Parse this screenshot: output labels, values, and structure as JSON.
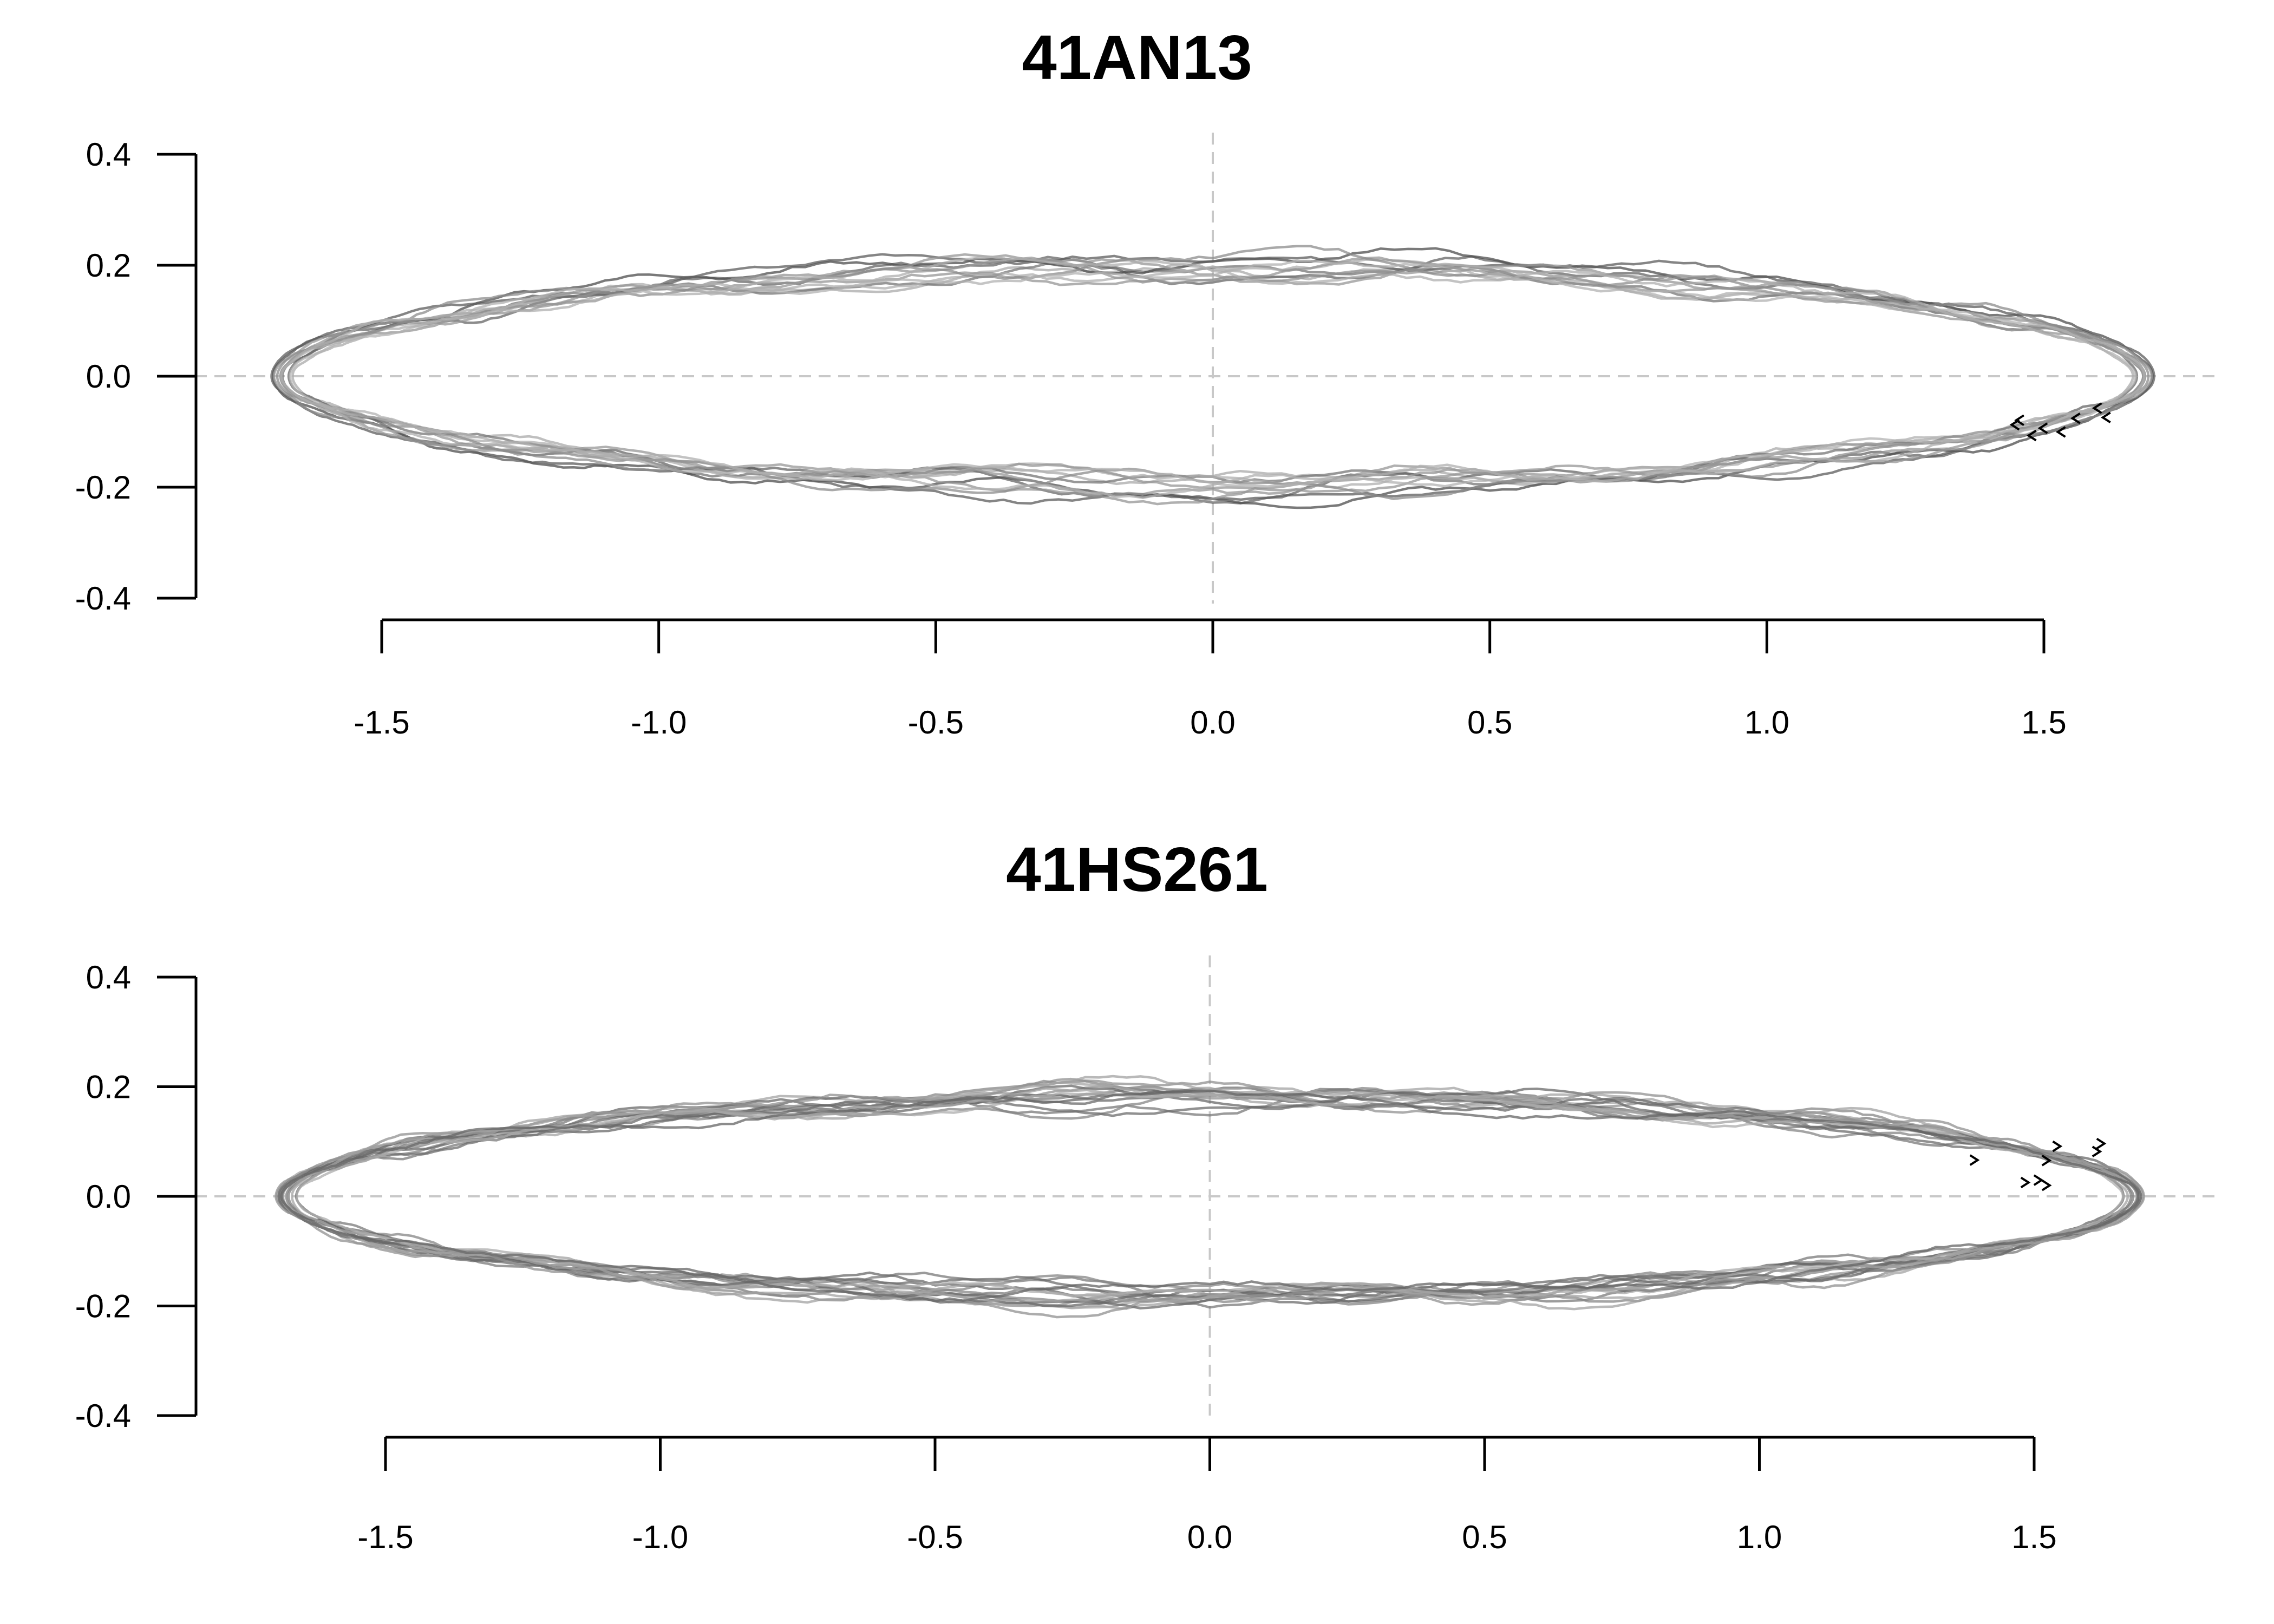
{
  "chart_data": [
    {
      "type": "line",
      "title": "41AN13",
      "xlabel": "",
      "ylabel": "",
      "xlim": [
        -1.85,
        1.83
      ],
      "ylim": [
        -0.4,
        0.4
      ],
      "x_ticks": [
        "-1.5",
        "-1.0",
        "-0.5",
        "0.0",
        "0.5",
        "1.0",
        "1.5"
      ],
      "y_ticks": [
        "0.4",
        "0.2",
        "0.0",
        "-0.2",
        "-0.4"
      ],
      "reference_lines": {
        "x": 0,
        "y": 0,
        "style": "dashed"
      },
      "colors": {
        "trace": "#4a4a4a",
        "reference": "#c8c8c8",
        "axis": "#000000"
      },
      "traces": {
        "count": 12,
        "center": [
          0.0,
          0.0
        ],
        "x_extent": [
          -1.68,
          1.68
        ],
        "y_extent": [
          -0.2,
          0.2
        ],
        "direction": "clockwise"
      }
    },
    {
      "type": "line",
      "title": "41HS261",
      "xlabel": "",
      "ylabel": "",
      "xlim": [
        -1.85,
        1.83
      ],
      "ylim": [
        -0.4,
        0.4
      ],
      "x_ticks": [
        "-1.5",
        "-1.0",
        "-0.5",
        "0.0",
        "0.5",
        "1.0",
        "1.5"
      ],
      "y_ticks": [
        "0.4",
        "0.2",
        "0.0",
        "-0.2",
        "-0.4"
      ],
      "reference_lines": {
        "x": 0,
        "y": 0,
        "style": "dashed"
      },
      "colors": {
        "trace": "#4a4a4a",
        "reference": "#c8c8c8",
        "axis": "#000000"
      },
      "traces": {
        "count": 16,
        "center": [
          0.0,
          0.0
        ],
        "x_extent": [
          -1.68,
          1.68
        ],
        "y_extent": [
          -0.18,
          0.18
        ],
        "direction": "clockwise"
      }
    }
  ]
}
